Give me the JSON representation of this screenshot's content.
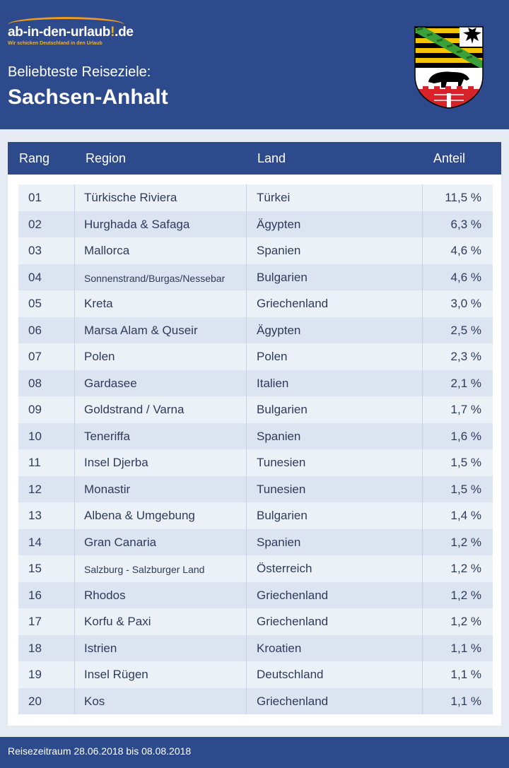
{
  "logo": {
    "name": "ab-in-den-urlaub",
    "mark": "!",
    "domain": ".de",
    "tagline": "Wir schicken Deutschland in den Urlaub"
  },
  "header": {
    "subtitle": "Beliebteste Reiseziele:",
    "title": "Sachsen-Anhalt",
    "crest_icon": "sachsen-anhalt-coat-of-arms"
  },
  "table": {
    "columns": {
      "rank": "Rang",
      "region": "Region",
      "land": "Land",
      "share": "Anteil"
    },
    "rows": [
      {
        "rank": "01",
        "region": "Türkische Riviera",
        "land": "Türkei",
        "share": "11,5 %"
      },
      {
        "rank": "02",
        "region": "Hurghada & Safaga",
        "land": "Ägypten",
        "share": "6,3 %"
      },
      {
        "rank": "03",
        "region": "Mallorca",
        "land": "Spanien",
        "share": "4,6 %"
      },
      {
        "rank": "04",
        "region": "Sonnenstrand/Burgas/Nessebar",
        "land": "Bulgarien",
        "share": "4,6 %"
      },
      {
        "rank": "05",
        "region": "Kreta",
        "land": "Griechenland",
        "share": "3,0 %"
      },
      {
        "rank": "06",
        "region": "Marsa Alam & Quseir",
        "land": "Ägypten",
        "share": "2,5 %"
      },
      {
        "rank": "07",
        "region": "Polen",
        "land": "Polen",
        "share": "2,3 %"
      },
      {
        "rank": "08",
        "region": "Gardasee",
        "land": "Italien",
        "share": "2,1 %"
      },
      {
        "rank": "09",
        "region": "Goldstrand / Varna",
        "land": "Bulgarien",
        "share": "1,7 %"
      },
      {
        "rank": "10",
        "region": "Teneriffa",
        "land": "Spanien",
        "share": "1,6 %"
      },
      {
        "rank": "11",
        "region": "Insel Djerba",
        "land": "Tunesien",
        "share": "1,5 %"
      },
      {
        "rank": "12",
        "region": "Monastir",
        "land": "Tunesien",
        "share": "1,5 %"
      },
      {
        "rank": "13",
        "region": "Albena & Umgebung",
        "land": "Bulgarien",
        "share": "1,4 %"
      },
      {
        "rank": "14",
        "region": "Gran Canaria",
        "land": "Spanien",
        "share": "1,2 %"
      },
      {
        "rank": "15",
        "region": "Salzburg - Salzburger Land",
        "land": "Österreich",
        "share": "1,2 %"
      },
      {
        "rank": "16",
        "region": "Rhodos",
        "land": "Griechenland",
        "share": "1,2 %"
      },
      {
        "rank": "17",
        "region": "Korfu & Paxi",
        "land": "Griechenland",
        "share": "1,2 %"
      },
      {
        "rank": "18",
        "region": "Istrien",
        "land": "Kroatien",
        "share": "1,1 %"
      },
      {
        "rank": "19",
        "region": "Insel Rügen",
        "land": "Deutschland",
        "share": "1,1 %"
      },
      {
        "rank": "20",
        "region": "Kos",
        "land": "Griechenland",
        "share": "1,1 %"
      }
    ]
  },
  "footer": {
    "note": "Reisezeitraum 28.06.2018 bis 08.08.2018"
  },
  "colors": {
    "primary": "#2c4a8c",
    "accent": "#f7b21b",
    "row_light": "#ecf0f7",
    "row_dark": "#dce4f2"
  }
}
